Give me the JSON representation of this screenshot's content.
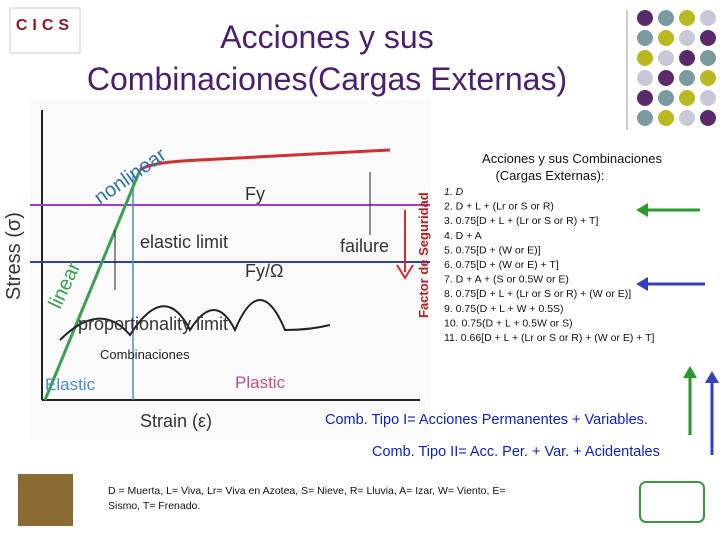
{
  "logo_top": "CICS",
  "title": [
    "Acciones y sus",
    "Combinaciones(Cargas Externas)"
  ],
  "diagram": {
    "nonlinear": "nonlinear",
    "linear": "linear",
    "stress": "Stress (σ)",
    "fy": "Fy",
    "elastic_limit": "elastic limit",
    "failure": "failure",
    "fy_omega": "Fy/Ω",
    "proportionality_limit": "proportionality limit",
    "elastic": "Elastic",
    "plastic": "Plastic",
    "strain": "Strain (ε)",
    "factor": "Factor de Seguridad",
    "combinaciones": "Combinaciones"
  },
  "list": {
    "heading": [
      "Acciones y sus Combinaciones",
      "(Cargas Externas):"
    ],
    "items": [
      "1. D",
      "2. D + L + (Lr or S or R)",
      "3. 0.75[D + L + (Lr or S or R) + T]",
      "4. D + A",
      "5. 0.75[D + (W or E)]",
      "6. 0.75[D + (W or E) + T]",
      "7. D + A + (S or 0.5W or E)",
      "8. 0.75[D + L + (Lr or S or R) + (W or E)]",
      "9. 0.75(D + L + W + 0.5S)",
      "10. 0.75(D + L + 0.5W or S)",
      "11. 0.66[D + L + (Lr or S or R) + (W or E) + T]"
    ]
  },
  "comb_1": "Comb. Tipo I= Acciones Permanentes + Variables.",
  "comb_2": "Comb. Tipo II= Acc. Per. + Var. + Acidentales",
  "footnote": [
    "D = Muerta, L= Viva, Lr= Viva en Azotea, S= Nieve, R= Lluvia, A= Izar, W= Viento, E=",
    "Sismo, T= Frenado."
  ]
}
